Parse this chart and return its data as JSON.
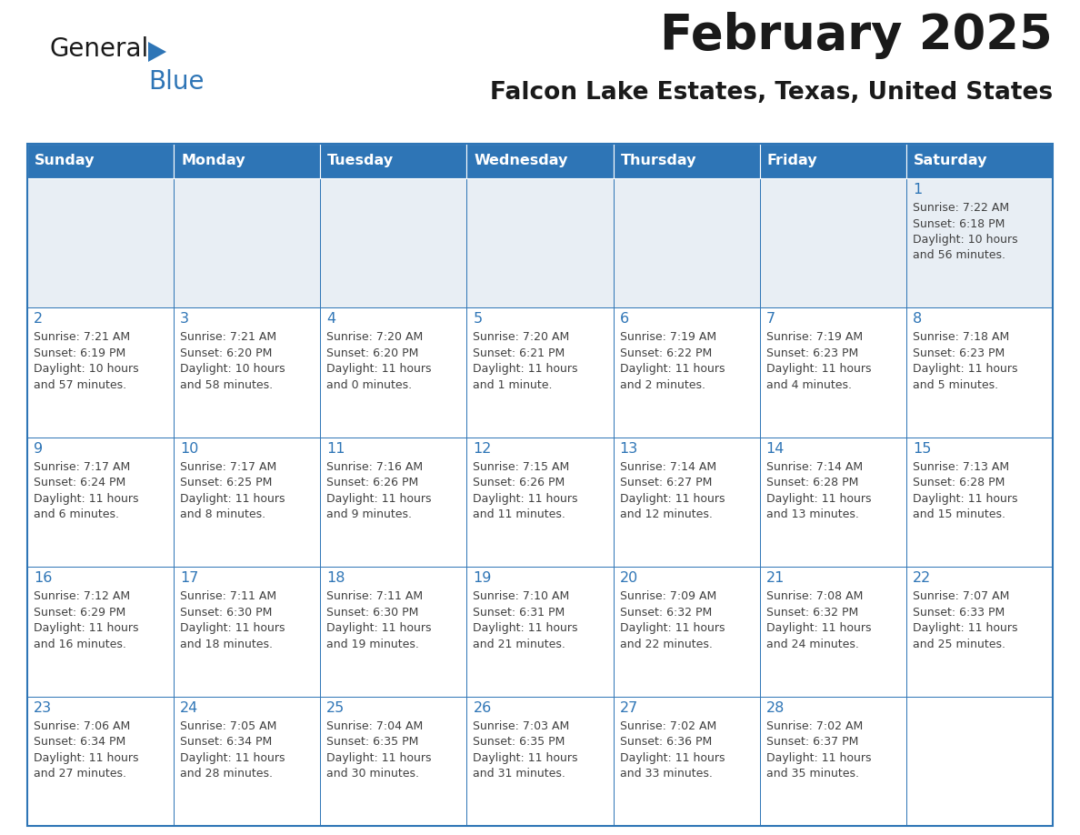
{
  "title": "February 2025",
  "subtitle": "Falcon Lake Estates, Texas, United States",
  "header_bg": "#2E75B6",
  "header_text_color": "#FFFFFF",
  "row0_bg": "#E8EEF4",
  "cell_bg": "#FFFFFF",
  "day_number_color": "#2E75B6",
  "info_text_color": "#404040",
  "border_color": "#2E75B6",
  "weekdays": [
    "Sunday",
    "Monday",
    "Tuesday",
    "Wednesday",
    "Thursday",
    "Friday",
    "Saturday"
  ],
  "days_data": [
    {
      "day": 1,
      "col": 6,
      "row": 0,
      "sunrise": "7:22 AM",
      "sunset": "6:18 PM",
      "daylight_h": "10 hours",
      "daylight_m": "and 56 minutes."
    },
    {
      "day": 2,
      "col": 0,
      "row": 1,
      "sunrise": "7:21 AM",
      "sunset": "6:19 PM",
      "daylight_h": "10 hours",
      "daylight_m": "and 57 minutes."
    },
    {
      "day": 3,
      "col": 1,
      "row": 1,
      "sunrise": "7:21 AM",
      "sunset": "6:20 PM",
      "daylight_h": "10 hours",
      "daylight_m": "and 58 minutes."
    },
    {
      "day": 4,
      "col": 2,
      "row": 1,
      "sunrise": "7:20 AM",
      "sunset": "6:20 PM",
      "daylight_h": "11 hours",
      "daylight_m": "and 0 minutes."
    },
    {
      "day": 5,
      "col": 3,
      "row": 1,
      "sunrise": "7:20 AM",
      "sunset": "6:21 PM",
      "daylight_h": "11 hours",
      "daylight_m": "and 1 minute."
    },
    {
      "day": 6,
      "col": 4,
      "row": 1,
      "sunrise": "7:19 AM",
      "sunset": "6:22 PM",
      "daylight_h": "11 hours",
      "daylight_m": "and 2 minutes."
    },
    {
      "day": 7,
      "col": 5,
      "row": 1,
      "sunrise": "7:19 AM",
      "sunset": "6:23 PM",
      "daylight_h": "11 hours",
      "daylight_m": "and 4 minutes."
    },
    {
      "day": 8,
      "col": 6,
      "row": 1,
      "sunrise": "7:18 AM",
      "sunset": "6:23 PM",
      "daylight_h": "11 hours",
      "daylight_m": "and 5 minutes."
    },
    {
      "day": 9,
      "col": 0,
      "row": 2,
      "sunrise": "7:17 AM",
      "sunset": "6:24 PM",
      "daylight_h": "11 hours",
      "daylight_m": "and 6 minutes."
    },
    {
      "day": 10,
      "col": 1,
      "row": 2,
      "sunrise": "7:17 AM",
      "sunset": "6:25 PM",
      "daylight_h": "11 hours",
      "daylight_m": "and 8 minutes."
    },
    {
      "day": 11,
      "col": 2,
      "row": 2,
      "sunrise": "7:16 AM",
      "sunset": "6:26 PM",
      "daylight_h": "11 hours",
      "daylight_m": "and 9 minutes."
    },
    {
      "day": 12,
      "col": 3,
      "row": 2,
      "sunrise": "7:15 AM",
      "sunset": "6:26 PM",
      "daylight_h": "11 hours",
      "daylight_m": "and 11 minutes."
    },
    {
      "day": 13,
      "col": 4,
      "row": 2,
      "sunrise": "7:14 AM",
      "sunset": "6:27 PM",
      "daylight_h": "11 hours",
      "daylight_m": "and 12 minutes."
    },
    {
      "day": 14,
      "col": 5,
      "row": 2,
      "sunrise": "7:14 AM",
      "sunset": "6:28 PM",
      "daylight_h": "11 hours",
      "daylight_m": "and 13 minutes."
    },
    {
      "day": 15,
      "col": 6,
      "row": 2,
      "sunrise": "7:13 AM",
      "sunset": "6:28 PM",
      "daylight_h": "11 hours",
      "daylight_m": "and 15 minutes."
    },
    {
      "day": 16,
      "col": 0,
      "row": 3,
      "sunrise": "7:12 AM",
      "sunset": "6:29 PM",
      "daylight_h": "11 hours",
      "daylight_m": "and 16 minutes."
    },
    {
      "day": 17,
      "col": 1,
      "row": 3,
      "sunrise": "7:11 AM",
      "sunset": "6:30 PM",
      "daylight_h": "11 hours",
      "daylight_m": "and 18 minutes."
    },
    {
      "day": 18,
      "col": 2,
      "row": 3,
      "sunrise": "7:11 AM",
      "sunset": "6:30 PM",
      "daylight_h": "11 hours",
      "daylight_m": "and 19 minutes."
    },
    {
      "day": 19,
      "col": 3,
      "row": 3,
      "sunrise": "7:10 AM",
      "sunset": "6:31 PM",
      "daylight_h": "11 hours",
      "daylight_m": "and 21 minutes."
    },
    {
      "day": 20,
      "col": 4,
      "row": 3,
      "sunrise": "7:09 AM",
      "sunset": "6:32 PM",
      "daylight_h": "11 hours",
      "daylight_m": "and 22 minutes."
    },
    {
      "day": 21,
      "col": 5,
      "row": 3,
      "sunrise": "7:08 AM",
      "sunset": "6:32 PM",
      "daylight_h": "11 hours",
      "daylight_m": "and 24 minutes."
    },
    {
      "day": 22,
      "col": 6,
      "row": 3,
      "sunrise": "7:07 AM",
      "sunset": "6:33 PM",
      "daylight_h": "11 hours",
      "daylight_m": "and 25 minutes."
    },
    {
      "day": 23,
      "col": 0,
      "row": 4,
      "sunrise": "7:06 AM",
      "sunset": "6:34 PM",
      "daylight_h": "11 hours",
      "daylight_m": "and 27 minutes."
    },
    {
      "day": 24,
      "col": 1,
      "row": 4,
      "sunrise": "7:05 AM",
      "sunset": "6:34 PM",
      "daylight_h": "11 hours",
      "daylight_m": "and 28 minutes."
    },
    {
      "day": 25,
      "col": 2,
      "row": 4,
      "sunrise": "7:04 AM",
      "sunset": "6:35 PM",
      "daylight_h": "11 hours",
      "daylight_m": "and 30 minutes."
    },
    {
      "day": 26,
      "col": 3,
      "row": 4,
      "sunrise": "7:03 AM",
      "sunset": "6:35 PM",
      "daylight_h": "11 hours",
      "daylight_m": "and 31 minutes."
    },
    {
      "day": 27,
      "col": 4,
      "row": 4,
      "sunrise": "7:02 AM",
      "sunset": "6:36 PM",
      "daylight_h": "11 hours",
      "daylight_m": "and 33 minutes."
    },
    {
      "day": 28,
      "col": 5,
      "row": 4,
      "sunrise": "7:02 AM",
      "sunset": "6:37 PM",
      "daylight_h": "11 hours",
      "daylight_m": "and 35 minutes."
    }
  ]
}
